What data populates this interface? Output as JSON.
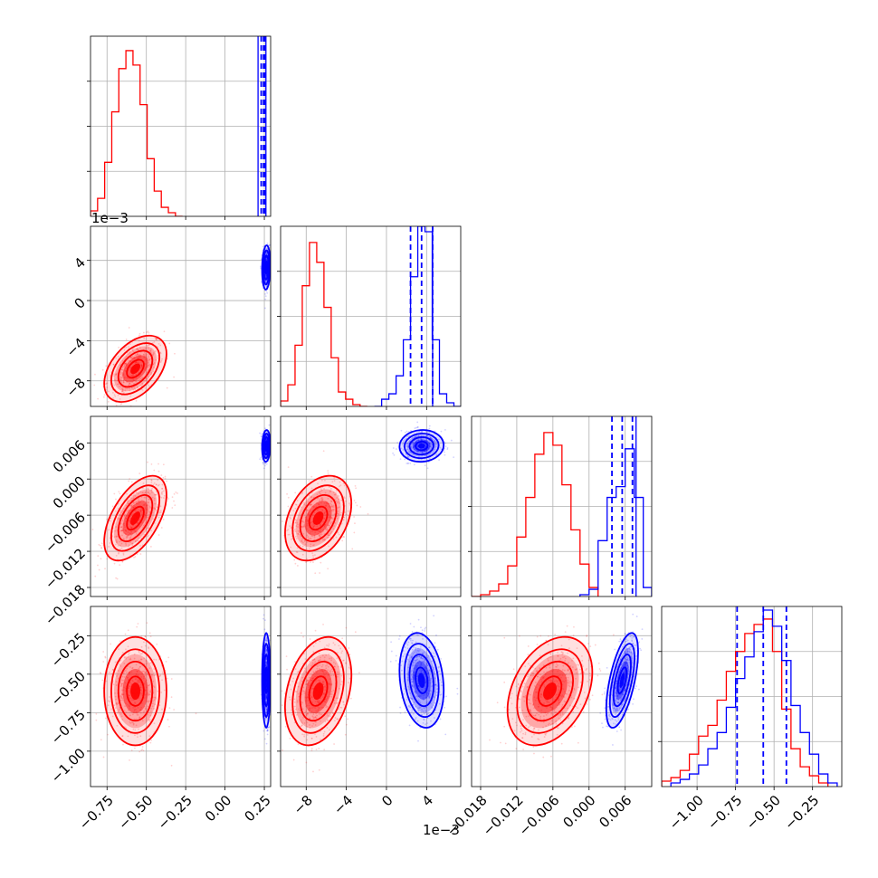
{
  "chart_data": {
    "type": "corner",
    "parameters": 4,
    "series": [
      {
        "name": "",
        "color": "#ff0000"
      },
      {
        "name": "",
        "color": "#0000ff"
      }
    ],
    "grid": true,
    "x_ticks": [
      [
        "−0.75",
        "−0.50",
        "−0.25",
        "0.00",
        "0.25"
      ],
      [
        "−8",
        "−4",
        "0",
        "4"
      ],
      [
        "−0.018",
        "−0.012",
        "−0.006",
        "0.000",
        "0.006"
      ],
      [
        "−1.00",
        "−0.75",
        "−0.50",
        "−0.25"
      ]
    ],
    "x_ranges": [
      [
        -0.855,
        0.29
      ],
      [
        -10.55,
        7.4
      ],
      [
        -0.0195,
        0.0104
      ],
      [
        -1.23,
        -0.06
      ]
    ],
    "y_ticks": [
      [],
      [
        "4",
        "0",
        "−4",
        "−8"
      ],
      [
        "0.006",
        "0.000",
        "−0.006",
        "−0.012",
        "−0.018"
      ],
      [
        "−0.25",
        "−0.50",
        "−0.75",
        "−1.00"
      ]
    ],
    "y_ranges": [
      null,
      [
        -10.55,
        7.4
      ],
      [
        -0.0195,
        0.0104
      ],
      [
        -1.23,
        -0.06
      ]
    ],
    "offset_labels": {
      "x": "1e−3",
      "y": "1e−3"
    },
    "marginals": [
      {
        "red": {
          "edges": [
            -0.855,
            -0.81,
            -0.765,
            -0.72,
            -0.675,
            -0.63,
            -0.585,
            -0.54,
            -0.495,
            -0.45,
            -0.405,
            -0.36,
            -0.315,
            -0.27
          ],
          "counts": [
            0.03,
            0.1,
            0.3,
            0.58,
            0.82,
            0.92,
            0.84,
            0.62,
            0.32,
            0.14,
            0.05,
            0.02,
            0.0
          ]
        },
        "blue_lines": [
          0.23,
          0.245,
          0.255
        ],
        "blue_solid": 0.26,
        "blue_start": 0.21
      },
      {
        "red": {
          "edges": [
            -10.55,
            -9.83,
            -9.11,
            -8.39,
            -7.67,
            -6.95,
            -6.23,
            -5.51,
            -4.79,
            -4.07,
            -3.35,
            -2.63,
            -1.91
          ],
          "counts": [
            0.03,
            0.12,
            0.34,
            0.67,
            0.91,
            0.8,
            0.55,
            0.27,
            0.08,
            0.04,
            0.01,
            0.0
          ]
        },
        "blue": {
          "edges": [
            -1.2,
            -0.48,
            0.24,
            0.96,
            1.68,
            2.4,
            3.12,
            3.84,
            4.56,
            5.28,
            6.0,
            6.72,
            7.4
          ],
          "counts": [
            0.0,
            0.04,
            0.07,
            0.17,
            0.37,
            0.72,
            1.0,
            0.97,
            0.37,
            0.07,
            0.02,
            0.0
          ]
        },
        "blue_lines": [
          2.4,
          3.5,
          4.6
        ],
        "blue_solid": 4.6
      },
      {
        "red": {
          "edges": [
            -0.0195,
            -0.018,
            -0.0165,
            -0.015,
            -0.0135,
            -0.012,
            -0.0105,
            -0.009,
            -0.0075,
            -0.006,
            -0.0045,
            -0.003,
            -0.0015,
            0.0,
            0.0015
          ],
          "counts": [
            0.0,
            0.01,
            0.03,
            0.07,
            0.17,
            0.33,
            0.55,
            0.79,
            0.91,
            0.84,
            0.62,
            0.37,
            0.18,
            0.05
          ]
        },
        "blue": {
          "edges": [
            -0.0015,
            0.0,
            0.0015,
            0.003,
            0.0045,
            0.006,
            0.0075,
            0.009,
            0.0104
          ],
          "counts": [
            0.01,
            0.04,
            0.31,
            0.55,
            0.61,
            0.82,
            0.55,
            0.05
          ]
        },
        "blue_lines": [
          0.0038,
          0.0055,
          0.0072
        ],
        "blue_solid": 0.0078
      },
      {
        "red": {
          "edges": [
            -1.23,
            -1.17,
            -1.11,
            -1.05,
            -0.99,
            -0.93,
            -0.87,
            -0.81,
            -0.75,
            -0.69,
            -0.63,
            -0.57,
            -0.51,
            -0.45,
            -0.39,
            -0.33,
            -0.27,
            -0.21,
            -0.15
          ],
          "counts": [
            0.03,
            0.05,
            0.09,
            0.18,
            0.28,
            0.34,
            0.48,
            0.64,
            0.75,
            0.85,
            0.9,
            0.93,
            0.75,
            0.43,
            0.21,
            0.11,
            0.06,
            0.02
          ]
        },
        "blue": {
          "edges": [
            -1.17,
            -1.11,
            -1.05,
            -0.99,
            -0.93,
            -0.87,
            -0.81,
            -0.75,
            -0.69,
            -0.63,
            -0.57,
            -0.51,
            -0.45,
            -0.39,
            -0.33,
            -0.27,
            -0.21,
            -0.15,
            -0.09
          ],
          "counts": [
            0.02,
            0.04,
            0.07,
            0.12,
            0.21,
            0.3,
            0.44,
            0.6,
            0.72,
            0.86,
            0.98,
            0.89,
            0.7,
            0.45,
            0.3,
            0.18,
            0.07,
            0.02
          ]
        },
        "blue_lines": [
          -0.74,
          -0.57,
          -0.42
        ]
      }
    ],
    "joint": [
      {
        "row": 1,
        "col": 0,
        "red": {
          "mx": -0.57,
          "my": -6.8,
          "sx": 0.09,
          "sy": 1.5,
          "rho": 0.45
        },
        "blue": {
          "mx": 0.262,
          "my": 3.3,
          "sx": 0.012,
          "sy": 1.0,
          "rho": 0.1
        }
      },
      {
        "row": 2,
        "col": 0,
        "red": {
          "mx": -0.57,
          "my": -0.0065,
          "sx": 0.09,
          "sy": 0.0032,
          "rho": 0.55
        },
        "blue": {
          "mx": 0.262,
          "my": 0.0055,
          "sx": 0.012,
          "sy": 0.0012,
          "rho": 0.1
        }
      },
      {
        "row": 2,
        "col": 1,
        "red": {
          "mx": -6.8,
          "my": -0.0065,
          "sx": 1.5,
          "sy": 0.0032,
          "rho": 0.35
        },
        "blue": {
          "mx": 3.5,
          "my": 0.0055,
          "sx": 1.0,
          "sy": 0.0012,
          "rho": 0.05
        }
      },
      {
        "row": 3,
        "col": 0,
        "red": {
          "mx": -0.57,
          "my": -0.61,
          "sx": 0.09,
          "sy": 0.16,
          "rho": 0.0
        },
        "blue": {
          "mx": 0.262,
          "my": -0.54,
          "sx": 0.012,
          "sy": 0.14,
          "rho": 0.0
        }
      },
      {
        "row": 3,
        "col": 1,
        "red": {
          "mx": -6.8,
          "my": -0.61,
          "sx": 1.5,
          "sy": 0.16,
          "rho": 0.3
        },
        "blue": {
          "mx": 3.5,
          "my": -0.54,
          "sx": 1.0,
          "sy": 0.14,
          "rho": -0.2
        }
      },
      {
        "row": 3,
        "col": 2,
        "red": {
          "mx": -0.0065,
          "my": -0.61,
          "sx": 0.0032,
          "sy": 0.16,
          "rho": 0.35
        },
        "blue": {
          "mx": 0.0055,
          "my": -0.54,
          "sx": 0.0012,
          "sy": 0.14,
          "rho": 0.6
        }
      }
    ]
  }
}
